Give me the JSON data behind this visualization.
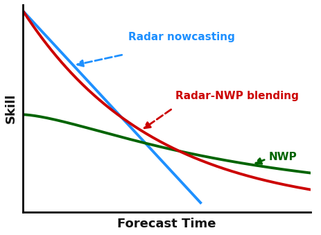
{
  "title": "",
  "xlabel": "Forecast Time",
  "ylabel": "Skill",
  "background_color": "#ffffff",
  "radar_nowcasting_color": "#1e90ff",
  "radar_nwp_blending_color": "#cc0000",
  "nwp_color": "#006400",
  "label_radar_nowcasting": "Radar nowcasting",
  "label_radar_nwp_blending": "Radar-NWP blending",
  "label_nwp": "NWP",
  "xlim": [
    0,
    1
  ],
  "ylim": [
    0,
    1
  ]
}
